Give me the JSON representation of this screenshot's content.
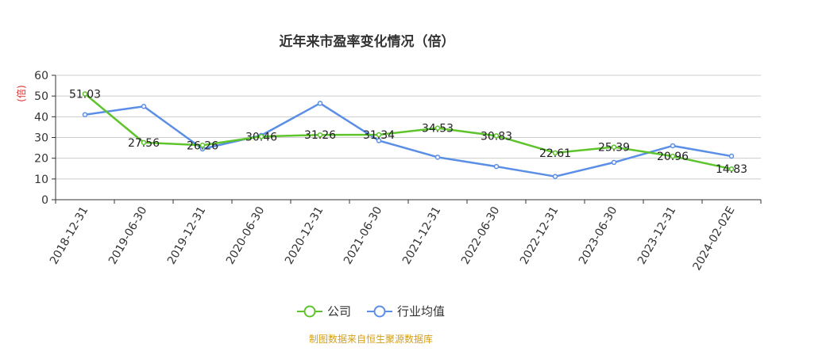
{
  "chart_data": {
    "type": "line",
    "title": "近年来市盈率变化情况（倍）",
    "ylabel": "(倍)",
    "xlabel": "",
    "ylim": [
      0,
      60
    ],
    "yticks": [
      0,
      10,
      20,
      30,
      40,
      50,
      60
    ],
    "grid": true,
    "legend_position": "bottom",
    "categories": [
      "2018-12-31",
      "2019-06-30",
      "2019-12-31",
      "2020-06-30",
      "2020-12-31",
      "2021-06-30",
      "2021-12-31",
      "2022-06-30",
      "2022-12-31",
      "2023-06-30",
      "2023-12-31",
      "2024-02-02E"
    ],
    "series": [
      {
        "name": "公司",
        "color": "#5ec42c",
        "values": [
          51.03,
          27.56,
          26.26,
          30.46,
          31.26,
          31.34,
          34.53,
          30.83,
          22.61,
          25.39,
          20.96,
          14.83
        ],
        "labels": [
          "51.03",
          "27.56",
          "26.26",
          "30.46",
          "31.26",
          "31.34",
          "34.53",
          "30.83",
          "22.61",
          "25.39",
          "20.96",
          "14.83"
        ]
      },
      {
        "name": "行业均值",
        "color": "#5b8ee6",
        "values": [
          41,
          45,
          24.5,
          31,
          46.5,
          28.5,
          20.5,
          16,
          11.2,
          18,
          26,
          21
        ]
      }
    ],
    "source": "制图数据来自恒生聚源数据库"
  }
}
